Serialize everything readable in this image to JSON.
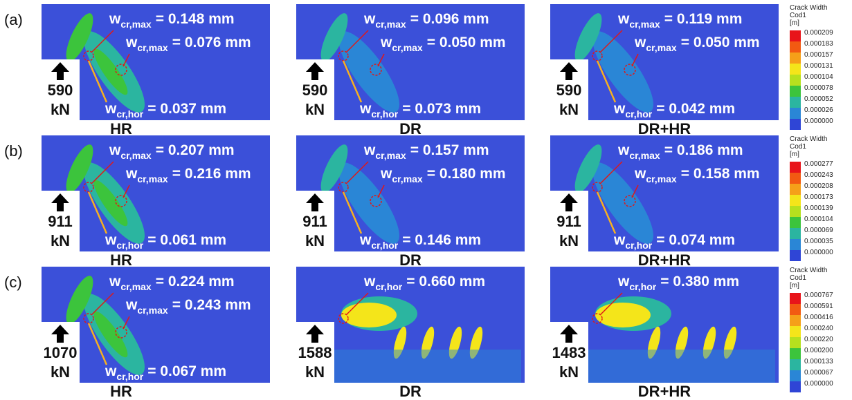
{
  "rows": [
    {
      "label": "(a)",
      "legend": {
        "title": [
          "Crack Width",
          "Cod1",
          "[m]"
        ],
        "values": [
          "0.000209",
          "0.000183",
          "0.000157",
          "0.000131",
          "0.000104",
          "0.000078",
          "0.000052",
          "0.000026",
          "0.000000"
        ]
      },
      "panels": [
        {
          "load": "590",
          "unit": "kN",
          "name": "HR",
          "annotations": [
            {
              "symbol": "w",
              "sub": "cr,max",
              "text": "= 0.148 mm"
            },
            {
              "symbol": "w",
              "sub": "cr,max",
              "text": "= 0.076 mm"
            },
            {
              "symbol": "w",
              "sub": "cr,hor",
              "text": "= 0.037 mm"
            }
          ]
        },
        {
          "load": "590",
          "unit": "kN",
          "name": "DR",
          "annotations": [
            {
              "symbol": "w",
              "sub": "cr,max",
              "text": "= 0.096 mm"
            },
            {
              "symbol": "w",
              "sub": "cr,max",
              "text": "= 0.050 mm"
            },
            {
              "symbol": "w",
              "sub": "cr,hor",
              "text": "= 0.073 mm"
            }
          ]
        },
        {
          "load": "590",
          "unit": "kN",
          "name": "DR+HR",
          "annotations": [
            {
              "symbol": "w",
              "sub": "cr,max",
              "text": "= 0.119 mm"
            },
            {
              "symbol": "w",
              "sub": "cr,max",
              "text": "= 0.050 mm"
            },
            {
              "symbol": "w",
              "sub": "cr,hor",
              "text": "= 0.042 mm"
            }
          ]
        }
      ]
    },
    {
      "label": "(b)",
      "legend": {
        "title": [
          "Crack Width",
          "Cod1",
          "[m]"
        ],
        "values": [
          "0.000277",
          "0.000243",
          "0.000208",
          "0.000173",
          "0.000139",
          "0.000104",
          "0.000069",
          "0.000035",
          "0.000000"
        ]
      },
      "panels": [
        {
          "load": "911",
          "unit": "kN",
          "name": "HR",
          "annotations": [
            {
              "symbol": "w",
              "sub": "cr,max",
              "text": "= 0.207 mm"
            },
            {
              "symbol": "w",
              "sub": "cr,max",
              "text": "= 0.216 mm"
            },
            {
              "symbol": "w",
              "sub": "cr,hor",
              "text": "= 0.061 mm"
            }
          ]
        },
        {
          "load": "911",
          "unit": "kN",
          "name": "DR",
          "annotations": [
            {
              "symbol": "w",
              "sub": "cr,max",
              "text": "= 0.157 mm"
            },
            {
              "symbol": "w",
              "sub": "cr,max",
              "text": "= 0.180 mm"
            },
            {
              "symbol": "w",
              "sub": "cr,hor",
              "text": "= 0.146 mm"
            }
          ]
        },
        {
          "load": "911",
          "unit": "kN",
          "name": "DR+HR",
          "annotations": [
            {
              "symbol": "w",
              "sub": "cr,max",
              "text": "= 0.186 mm"
            },
            {
              "symbol": "w",
              "sub": "cr,max",
              "text": "= 0.158 mm"
            },
            {
              "symbol": "w",
              "sub": "cr,hor",
              "text": "= 0.074 mm"
            }
          ]
        }
      ]
    },
    {
      "label": "(c)",
      "legend": {
        "title": [
          "Crack Width",
          "Cod1",
          "[m]"
        ],
        "values": [
          "0.000767",
          "0.000591",
          "0.000416",
          "0.000240",
          "0.000220",
          "0.000200",
          "0.000133",
          "0.000067",
          "0.000000"
        ]
      },
      "panels": [
        {
          "load": "1070",
          "unit": "kN",
          "name": "HR",
          "annotations": [
            {
              "symbol": "w",
              "sub": "cr,max",
              "text": "= 0.224 mm"
            },
            {
              "symbol": "w",
              "sub": "cr,max",
              "text": "= 0.243 mm"
            },
            {
              "symbol": "w",
              "sub": "cr,hor",
              "text": "= 0.067 mm"
            }
          ]
        },
        {
          "load": "1588",
          "unit": "kN",
          "name": "DR",
          "annotations": [
            {
              "symbol": "w",
              "sub": "cr,hor",
              "text": "= 0.660 mm"
            }
          ]
        },
        {
          "load": "1483",
          "unit": "kN",
          "name": "DR+HR",
          "annotations": [
            {
              "symbol": "w",
              "sub": "cr,hor",
              "text": "= 0.380 mm"
            }
          ]
        }
      ]
    }
  ]
}
